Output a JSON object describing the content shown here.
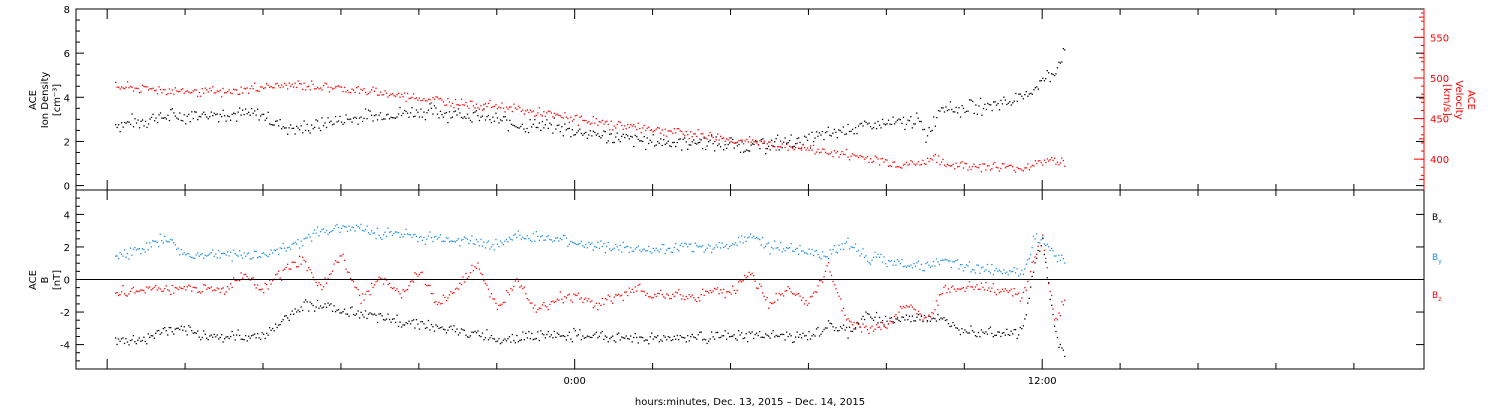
{
  "colors": {
    "black": "#000000",
    "red": "#ff0000",
    "blue": "#1f8fde"
  },
  "xlabel": "hours:minutes, Dec. 13, 2015 – Dec. 14, 2015",
  "chart_data": [
    {
      "type": "scatter",
      "panel": "top",
      "ylabel_line1": "ACE",
      "ylabel_line2": "Ion Density",
      "ylabel_unit": "[cm⁻³]",
      "y2label_line1": "ACE",
      "y2label_line2": "Velocity",
      "y2label_unit": "[km/s]",
      "xlim": [
        -12.8,
        21.8
      ],
      "x_ticks": [
        {
          "x": 0,
          "label": "0:00"
        },
        {
          "x": 12,
          "label": "12:00"
        }
      ],
      "ylim": [
        -0.2,
        8.0
      ],
      "y_ticks": [
        0,
        2,
        4,
        6,
        8
      ],
      "y2lim": [
        362,
        585
      ],
      "y2_ticks": [
        400,
        450,
        500,
        550
      ],
      "series": [
        {
          "axis": "left",
          "color": "black",
          "x": [
            -11.8,
            -11.3,
            -10.8,
            -10.0,
            -9.0,
            -8.0,
            -7.5,
            -7.0,
            -6.5,
            -6.0,
            -5.0,
            -4.0,
            -3.0,
            -2.0,
            -1.6,
            -1.2,
            -1.0,
            0.0,
            1.0,
            2.0,
            3.0,
            4.0,
            4.4,
            5.0,
            6.0,
            6.8,
            7.0,
            7.5,
            8.0,
            8.5,
            8.8,
            9.0,
            9.4,
            9.7,
            10.0,
            10.4,
            11.0,
            11.5,
            12.0,
            12.3,
            12.6
          ],
          "y": [
            2.8,
            2.9,
            3.1,
            3.2,
            3.3,
            3.2,
            2.7,
            2.6,
            2.8,
            3.0,
            3.2,
            3.4,
            3.3,
            3.0,
            2.8,
            2.7,
            2.8,
            2.5,
            2.2,
            2.0,
            2.0,
            1.9,
            1.8,
            1.9,
            2.1,
            2.5,
            2.6,
            2.7,
            2.8,
            2.9,
            3.0,
            2.2,
            3.7,
            3.5,
            3.5,
            3.6,
            3.8,
            4.0,
            4.8,
            5.2,
            6.2
          ]
        },
        {
          "axis": "right",
          "color": "red",
          "x": [
            -11.8,
            -11.3,
            -10.8,
            -10.0,
            -9.5,
            -9.0,
            -8.0,
            -7.0,
            -6.5,
            -6.0,
            -5.0,
            -4.0,
            -3.0,
            -2.0,
            -1.0,
            0.0,
            1.0,
            2.0,
            3.0,
            4.0,
            4.4,
            5.0,
            6.0,
            7.0,
            8.0,
            8.5,
            9.0,
            9.2,
            9.4,
            10.0,
            10.5,
            11.0,
            11.3,
            11.5,
            12.0,
            12.3,
            12.6
          ],
          "y": [
            490,
            488,
            487,
            484,
            484,
            482,
            490,
            492,
            490,
            488,
            482,
            476,
            470,
            466,
            458,
            450,
            443,
            438,
            432,
            425,
            422,
            419,
            413,
            406,
            398,
            394,
            396,
            405,
            394,
            393,
            392,
            391,
            390,
            390,
            398,
            400,
            396
          ]
        }
      ]
    },
    {
      "type": "scatter",
      "panel": "bottom",
      "ylabel_line1": "ACE",
      "ylabel_line2": "B",
      "ylabel_unit": "[nT]",
      "xlim": [
        -12.8,
        21.8
      ],
      "x_ticks": [
        {
          "x": 0,
          "label": "0:00"
        },
        {
          "x": 12,
          "label": "12:00"
        }
      ],
      "ylim": [
        -5.5,
        5.5
      ],
      "y_ticks": [
        -4,
        -2,
        0,
        2,
        4
      ],
      "zero_line": true,
      "series": [
        {
          "name": "B",
          "name_sub": "x",
          "color": "black",
          "x": [
            -11.8,
            -11.0,
            -10.5,
            -10.0,
            -9.0,
            -8.0,
            -7.5,
            -7.0,
            -6.5,
            -6.0,
            -5.5,
            -5.0,
            -4.5,
            -4.0,
            -3.5,
            -3.0,
            -2.5,
            -2.0,
            -1.5,
            -1.0,
            0.0,
            1.0,
            2.0,
            3.0,
            4.0,
            5.0,
            6.0,
            6.5,
            7.0,
            7.5,
            8.0,
            8.5,
            9.0,
            9.5,
            10.0,
            10.5,
            11.0,
            11.3,
            11.5,
            11.8,
            12.0,
            12.3,
            12.6
          ],
          "y": [
            -3.8,
            -3.6,
            -3.0,
            -3.2,
            -3.5,
            -3.4,
            -2.5,
            -1.5,
            -1.5,
            -2.0,
            -2.0,
            -2.4,
            -2.5,
            -2.6,
            -3.0,
            -3.2,
            -3.3,
            -3.6,
            -3.5,
            -3.4,
            -3.4,
            -3.5,
            -3.6,
            -3.5,
            -3.5,
            -3.4,
            -3.5,
            -2.8,
            -3.2,
            -2.2,
            -2.5,
            -2.4,
            -2.2,
            -2.6,
            -3.0,
            -3.1,
            -3.2,
            -3.3,
            -3.0,
            1.0,
            2.5,
            -3.0,
            -5.0
          ]
        },
        {
          "name": "B",
          "name_sub": "y",
          "color": "blue",
          "x": [
            -11.8,
            -11.0,
            -10.5,
            -10.0,
            -9.0,
            -8.0,
            -7.5,
            -7.0,
            -6.5,
            -6.0,
            -5.5,
            -5.0,
            -4.5,
            -4.0,
            -3.0,
            -2.0,
            -1.5,
            -1.0,
            0.0,
            1.0,
            2.0,
            3.0,
            4.0,
            4.5,
            5.0,
            6.0,
            6.5,
            7.0,
            7.5,
            8.0,
            8.5,
            9.0,
            9.5,
            10.0,
            10.5,
            11.0,
            11.3,
            11.5,
            11.8,
            12.0,
            12.3,
            12.6
          ],
          "y": [
            1.5,
            2.0,
            2.6,
            1.5,
            1.6,
            1.5,
            2.0,
            2.4,
            3.0,
            3.3,
            3.2,
            2.8,
            2.9,
            2.6,
            2.5,
            2.2,
            2.7,
            2.6,
            2.3,
            2.0,
            1.8,
            2.0,
            2.1,
            2.8,
            2.0,
            1.8,
            1.5,
            2.4,
            1.4,
            1.2,
            1.0,
            0.8,
            1.2,
            0.8,
            0.7,
            0.6,
            0.6,
            0.5,
            2.8,
            2.5,
            1.5,
            1.0
          ]
        },
        {
          "name": "B",
          "name_sub": "z",
          "color": "red",
          "x": [
            -11.8,
            -11.0,
            -10.5,
            -10.0,
            -9.0,
            -8.5,
            -8.0,
            -7.5,
            -7.0,
            -6.5,
            -6.0,
            -5.5,
            -5.0,
            -4.5,
            -4.0,
            -3.5,
            -3.0,
            -2.5,
            -2.0,
            -1.5,
            -1.0,
            -0.5,
            0.0,
            0.5,
            1.0,
            1.5,
            2.0,
            2.5,
            3.0,
            3.5,
            4.0,
            4.5,
            5.0,
            5.5,
            6.0,
            6.5,
            7.0,
            7.5,
            8.0,
            8.5,
            9.0,
            9.5,
            10.0,
            10.5,
            11.0,
            11.3,
            11.5,
            11.8,
            12.0,
            12.3,
            12.6
          ],
          "y": [
            -0.8,
            -0.6,
            -0.5,
            -0.5,
            -0.6,
            0.3,
            -0.5,
            0.5,
            1.2,
            -0.5,
            1.5,
            -1.2,
            0.3,
            -1.0,
            0.5,
            -1.5,
            -0.5,
            1.0,
            -2.0,
            0.2,
            -1.8,
            -1.2,
            -1.0,
            -1.5,
            -1.2,
            -0.5,
            -1.0,
            -0.8,
            -1.2,
            -0.6,
            -0.8,
            0.5,
            -1.5,
            -0.5,
            -1.5,
            0.8,
            -2.5,
            -3.0,
            -2.8,
            -1.5,
            -2.5,
            -0.5,
            -0.5,
            -0.5,
            -0.6,
            -0.8,
            -1.0,
            1.5,
            2.5,
            -2.5,
            -1.2
          ]
        }
      ]
    }
  ]
}
